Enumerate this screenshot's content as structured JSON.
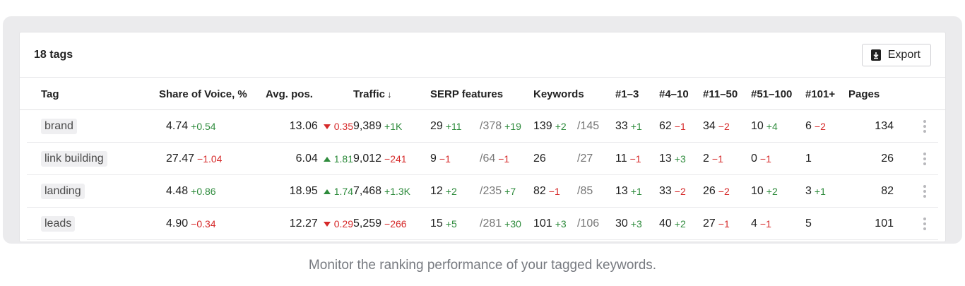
{
  "card": {
    "title": "18 tags",
    "export_label": "Export"
  },
  "columns": {
    "tag": "Tag",
    "sov": "Share of Voice, %",
    "avg_pos": "Avg. pos.",
    "traffic": "Traffic",
    "traffic_sort": "↓",
    "serp": "SERP features",
    "keywords": "Keywords",
    "r1_3": "#1–3",
    "r4_10": "#4–10",
    "r11_50": "#11–50",
    "r51_100": "#51–100",
    "r101": "#101+",
    "pages": "Pages"
  },
  "rows": [
    {
      "tag": "brand",
      "sov": "4.74",
      "sov_delta": "+0.54",
      "sov_dir": "up",
      "avg_pos": "13.06",
      "avg_pos_delta": "0.35",
      "avg_pos_dir": "down",
      "traffic": "9,389",
      "traffic_delta": "+1K",
      "traffic_dir": "up",
      "serp": "29",
      "serp_delta": "+11",
      "serp_dir": "up",
      "serp_total": "/378",
      "serp_total_delta": "+19",
      "serp_total_dir": "up",
      "kw": "139",
      "kw_delta": "+2",
      "kw_dir": "up",
      "kw_total": "/145",
      "r1_3": "33",
      "r1_3_delta": "+1",
      "r1_3_dir": "up",
      "r4_10": "62",
      "r4_10_delta": "−1",
      "r4_10_dir": "down",
      "r11_50": "34",
      "r11_50_delta": "−2",
      "r11_50_dir": "down",
      "r51_100": "10",
      "r51_100_delta": "+4",
      "r51_100_dir": "up",
      "r101": "6",
      "r101_delta": "−2",
      "r101_dir": "down",
      "pages": "134"
    },
    {
      "tag": "link building",
      "sov": "27.47",
      "sov_delta": "−1.04",
      "sov_dir": "down",
      "avg_pos": "6.04",
      "avg_pos_delta": "1.81",
      "avg_pos_dir": "up",
      "traffic": "9,012",
      "traffic_delta": "−241",
      "traffic_dir": "down",
      "serp": "9",
      "serp_delta": "−1",
      "serp_dir": "down",
      "serp_total": "/64",
      "serp_total_delta": "−1",
      "serp_total_dir": "down",
      "kw": "26",
      "kw_delta": "",
      "kw_dir": "up",
      "kw_total": "/27",
      "r1_3": "11",
      "r1_3_delta": "−1",
      "r1_3_dir": "down",
      "r4_10": "13",
      "r4_10_delta": "+3",
      "r4_10_dir": "up",
      "r11_50": "2",
      "r11_50_delta": "−1",
      "r11_50_dir": "down",
      "r51_100": "0",
      "r51_100_delta": "−1",
      "r51_100_dir": "down",
      "r101": "1",
      "r101_delta": "",
      "r101_dir": "up",
      "pages": "26"
    },
    {
      "tag": "landing",
      "sov": "4.48",
      "sov_delta": "+0.86",
      "sov_dir": "up",
      "avg_pos": "18.95",
      "avg_pos_delta": "1.74",
      "avg_pos_dir": "up",
      "traffic": "7,468",
      "traffic_delta": "+1.3K",
      "traffic_dir": "up",
      "serp": "12",
      "serp_delta": "+2",
      "serp_dir": "up",
      "serp_total": "/235",
      "serp_total_delta": "+7",
      "serp_total_dir": "up",
      "kw": "82",
      "kw_delta": "−1",
      "kw_dir": "down",
      "kw_total": "/85",
      "r1_3": "13",
      "r1_3_delta": "+1",
      "r1_3_dir": "up",
      "r4_10": "33",
      "r4_10_delta": "−2",
      "r4_10_dir": "down",
      "r11_50": "26",
      "r11_50_delta": "−2",
      "r11_50_dir": "down",
      "r51_100": "10",
      "r51_100_delta": "+2",
      "r51_100_dir": "up",
      "r101": "3",
      "r101_delta": "+1",
      "r101_dir": "up",
      "pages": "82"
    },
    {
      "tag": "leads",
      "sov": "4.90",
      "sov_delta": "−0.34",
      "sov_dir": "down",
      "avg_pos": "12.27",
      "avg_pos_delta": "0.29",
      "avg_pos_dir": "down",
      "traffic": "5,259",
      "traffic_delta": "−266",
      "traffic_dir": "down",
      "serp": "15",
      "serp_delta": "+5",
      "serp_dir": "up",
      "serp_total": "/281",
      "serp_total_delta": "+30",
      "serp_total_dir": "up",
      "kw": "101",
      "kw_delta": "+3",
      "kw_dir": "up",
      "kw_total": "/106",
      "r1_3": "30",
      "r1_3_delta": "+3",
      "r1_3_dir": "up",
      "r4_10": "40",
      "r4_10_delta": "+2",
      "r4_10_dir": "up",
      "r11_50": "27",
      "r11_50_delta": "−1",
      "r11_50_dir": "down",
      "r51_100": "4",
      "r51_100_delta": "−1",
      "r51_100_dir": "down",
      "r101": "5",
      "r101_delta": "",
      "r101_dir": "up",
      "pages": "101"
    }
  ],
  "caption": "Monitor the ranking performance of your tagged keywords.",
  "colors": {
    "positive": "#2e8b3c",
    "negative": "#d62a2a",
    "frame": "#ebebed"
  },
  "icons": {
    "export": "download-icon",
    "row_menu": "kebab-menu-icon",
    "up": "triangle-up-icon",
    "down": "triangle-down-icon"
  }
}
